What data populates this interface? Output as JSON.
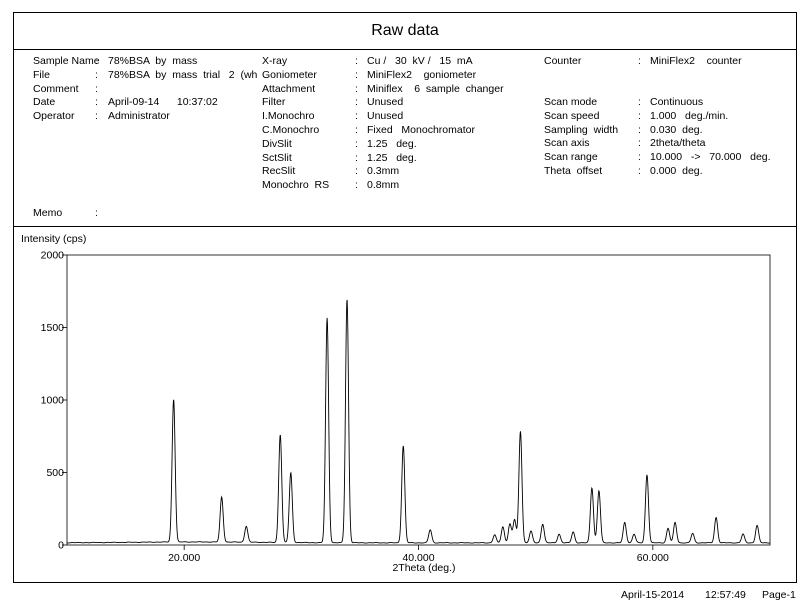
{
  "report": {
    "title": "Raw data"
  },
  "info": {
    "col1": [
      {
        "label": "Sample Name",
        "sep": ":",
        "value": "78%BSA  by  mass"
      },
      {
        "label": "File",
        "sep": ":",
        "value": "78%BSA  by  mass  trial   2  (wh"
      },
      {
        "label": "Comment",
        "sep": ":",
        "value": ""
      },
      {
        "label": "Date",
        "sep": ":",
        "value": "April-09-14      10:37:02"
      },
      {
        "label": "Operator",
        "sep": ":",
        "value": "Administrator"
      }
    ],
    "col2": [
      {
        "label": "X-ray",
        "sep": ":",
        "value": "Cu /   30  kV /   15  mA"
      },
      {
        "label": "Goniometer",
        "sep": ":",
        "value": "MiniFlex2    goniometer"
      },
      {
        "label": "Attachment",
        "sep": ":",
        "value": "Miniflex    6  sample  changer"
      },
      {
        "label": "Filter",
        "sep": ":",
        "value": "Unused"
      },
      {
        "label": "I.Monochro",
        "sep": ":",
        "value": "Unused"
      },
      {
        "label": "C.Monochro",
        "sep": ":",
        "value": "Fixed   Monochromator"
      },
      {
        "label": "DivSlit",
        "sep": ":",
        "value": "1.25   deg."
      },
      {
        "label": "SctSlit",
        "sep": ":",
        "value": "1.25   deg."
      },
      {
        "label": "RecSlit",
        "sep": ":",
        "value": "0.3mm"
      },
      {
        "label": "Monochro  RS",
        "sep": ":",
        "value": "0.8mm"
      }
    ],
    "col3_top": [
      {
        "label": "Counter",
        "sep": ":",
        "value": "MiniFlex2    counter"
      }
    ],
    "col3": [
      {
        "label": "Scan mode",
        "sep": ":",
        "value": "Continuous"
      },
      {
        "label": "Scan speed",
        "sep": ":",
        "value": "1.000   deg./min."
      },
      {
        "label": "Sampling  width",
        "sep": ":",
        "value": "0.030  deg."
      },
      {
        "label": "Scan axis",
        "sep": ":",
        "value": "2theta/theta"
      },
      {
        "label": "Scan range",
        "sep": ":",
        "value": "10.000   ->   70.000   deg."
      },
      {
        "label": "Theta  offset",
        "sep": ":",
        "value": "0.000  deg."
      }
    ],
    "memo": {
      "label": "Memo",
      "sep": ":",
      "value": ""
    }
  },
  "chart_data": {
    "type": "line",
    "ylabel": "Intensity (cps)",
    "xlabel": "2Theta (deg.)",
    "xlim": [
      10,
      70
    ],
    "ylim": [
      0,
      2000
    ],
    "x_ticks": [
      20,
      40,
      60
    ],
    "x_tick_labels": [
      "20.000",
      "40.000",
      "60.000"
    ],
    "y_ticks": [
      0,
      500,
      1000,
      1500,
      2000
    ],
    "y_tick_labels": [
      "0",
      "500",
      "1000",
      "1500",
      "2000"
    ],
    "baseline": 15,
    "peaks": [
      {
        "x": 19.1,
        "y": 985
      },
      {
        "x": 23.2,
        "y": 310
      },
      {
        "x": 25.3,
        "y": 110
      },
      {
        "x": 28.2,
        "y": 745
      },
      {
        "x": 29.1,
        "y": 480
      },
      {
        "x": 32.2,
        "y": 1550
      },
      {
        "x": 33.9,
        "y": 1680
      },
      {
        "x": 38.7,
        "y": 670
      },
      {
        "x": 41.0,
        "y": 90
      },
      {
        "x": 46.5,
        "y": 55
      },
      {
        "x": 47.2,
        "y": 110
      },
      {
        "x": 47.8,
        "y": 130
      },
      {
        "x": 48.2,
        "y": 160
      },
      {
        "x": 48.7,
        "y": 770
      },
      {
        "x": 49.6,
        "y": 80
      },
      {
        "x": 50.6,
        "y": 130
      },
      {
        "x": 52.0,
        "y": 60
      },
      {
        "x": 53.2,
        "y": 75
      },
      {
        "x": 54.8,
        "y": 380
      },
      {
        "x": 55.4,
        "y": 360
      },
      {
        "x": 57.6,
        "y": 140
      },
      {
        "x": 58.4,
        "y": 60
      },
      {
        "x": 59.5,
        "y": 470
      },
      {
        "x": 61.3,
        "y": 100
      },
      {
        "x": 61.9,
        "y": 140
      },
      {
        "x": 63.4,
        "y": 65
      },
      {
        "x": 65.4,
        "y": 175
      },
      {
        "x": 67.7,
        "y": 60
      },
      {
        "x": 68.9,
        "y": 120
      }
    ]
  },
  "footer": {
    "date": "April-15-2014",
    "time": "12:57:49",
    "page": "Page-1"
  }
}
